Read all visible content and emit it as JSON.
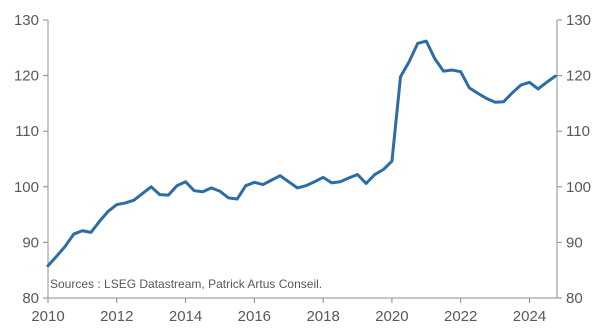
{
  "chart_data": {
    "type": "line",
    "title": "",
    "xlabel": "",
    "ylabel": "",
    "xlim": [
      2010,
      2024.8
    ],
    "ylim": [
      80,
      130
    ],
    "y_ticks": [
      80,
      90,
      100,
      110,
      120,
      130
    ],
    "x_ticks": [
      2010,
      2012,
      2014,
      2016,
      2018,
      2020,
      2022,
      2024
    ],
    "y_tick_labels": [
      "80",
      "90",
      "100",
      "110",
      "120",
      "130"
    ],
    "x_tick_labels": [
      "2010",
      "2012",
      "2014",
      "2016",
      "2018",
      "2020",
      "2022",
      "2024"
    ],
    "dual_y_axis": true,
    "grid": false,
    "legend": "none",
    "source_note": "Sources : LSEG Datastream, Patrick Artus Conseil.",
    "colors": {
      "series": "#2e6da4",
      "axis": "#8c8c8c",
      "text": "#595959"
    },
    "series": [
      {
        "x": [
          2010.0,
          2010.25,
          2010.5,
          2010.75,
          2011.0,
          2011.25,
          2011.5,
          2011.75,
          2012.0,
          2012.25,
          2012.5,
          2012.75,
          2013.0,
          2013.25,
          2013.5,
          2013.75,
          2014.0,
          2014.25,
          2014.5,
          2014.75,
          2015.0,
          2015.25,
          2015.5,
          2015.75,
          2016.0,
          2016.25,
          2016.5,
          2016.75,
          2017.0,
          2017.25,
          2017.5,
          2017.75,
          2018.0,
          2018.25,
          2018.5,
          2018.75,
          2019.0,
          2019.25,
          2019.5,
          2019.75,
          2020.0,
          2020.25,
          2020.5,
          2020.75,
          2021.0,
          2021.25,
          2021.5,
          2021.75,
          2022.0,
          2022.25,
          2022.5,
          2022.75,
          2023.0,
          2023.25,
          2023.5,
          2023.75,
          2024.0,
          2024.25,
          2024.5,
          2024.75
        ],
        "values": [
          85.8,
          87.5,
          89.3,
          91.5,
          92.1,
          91.8,
          93.8,
          95.6,
          96.8,
          97.1,
          97.6,
          98.8,
          100.0,
          98.6,
          98.5,
          100.2,
          100.9,
          99.3,
          99.1,
          99.8,
          99.2,
          98.0,
          97.8,
          100.2,
          100.8,
          100.4,
          101.2,
          102.0,
          100.9,
          99.8,
          100.2,
          100.9,
          101.7,
          100.7,
          100.9,
          101.6,
          102.2,
          100.6,
          102.2,
          103.1,
          104.6,
          119.8,
          122.5,
          125.8,
          126.2,
          123.0,
          120.8,
          121.0,
          120.7,
          117.8,
          116.8,
          115.9,
          115.2,
          115.3,
          116.9,
          118.3,
          118.8,
          117.6,
          118.8,
          119.9
        ]
      }
    ]
  }
}
